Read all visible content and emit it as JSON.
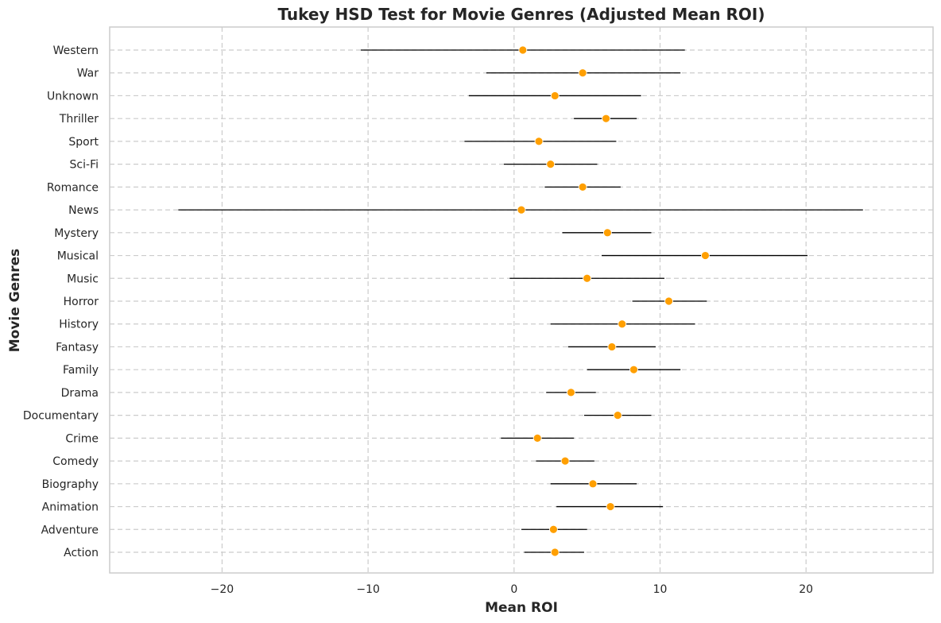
{
  "chart_data": {
    "type": "scatter",
    "title": "Tukey HSD Test for Movie Genres (Adjusted Mean ROI)",
    "xlabel": "Mean ROI",
    "ylabel": "Movie Genres",
    "xlim": [
      -27.7,
      28.7
    ],
    "x_ticks": [
      -20,
      -10,
      0,
      10,
      20
    ],
    "x_tick_labels": [
      "−20",
      "−10",
      "0",
      "10",
      "20"
    ],
    "grid": true,
    "colors": {
      "point": "#ff9f00",
      "interval": "#000000",
      "grid": "#cccccc"
    },
    "categories": [
      "Action",
      "Adventure",
      "Animation",
      "Biography",
      "Comedy",
      "Crime",
      "Documentary",
      "Drama",
      "Family",
      "Fantasy",
      "History",
      "Horror",
      "Music",
      "Musical",
      "Mystery",
      "News",
      "Romance",
      "Sci-Fi",
      "Sport",
      "Thriller",
      "Unknown",
      "War",
      "Western"
    ],
    "means": [
      2.8,
      2.7,
      6.6,
      5.4,
      3.5,
      1.6,
      7.1,
      3.9,
      8.2,
      6.7,
      7.4,
      10.6,
      5.0,
      13.1,
      6.4,
      0.5,
      4.7,
      2.5,
      1.7,
      6.3,
      2.8,
      4.7,
      0.6
    ],
    "lower": [
      0.7,
      0.5,
      2.9,
      2.5,
      1.5,
      -0.9,
      4.8,
      2.2,
      5.0,
      3.7,
      2.5,
      8.1,
      -0.3,
      6.0,
      3.3,
      -23.0,
      2.1,
      -0.7,
      -3.4,
      4.1,
      -3.1,
      -1.9,
      -10.5
    ],
    "upper": [
      4.8,
      5.0,
      10.2,
      8.4,
      5.5,
      4.1,
      9.4,
      5.6,
      11.4,
      9.7,
      12.4,
      13.2,
      10.3,
      20.1,
      9.4,
      23.9,
      7.3,
      5.7,
      7.0,
      8.4,
      8.7,
      11.4,
      11.7
    ]
  }
}
